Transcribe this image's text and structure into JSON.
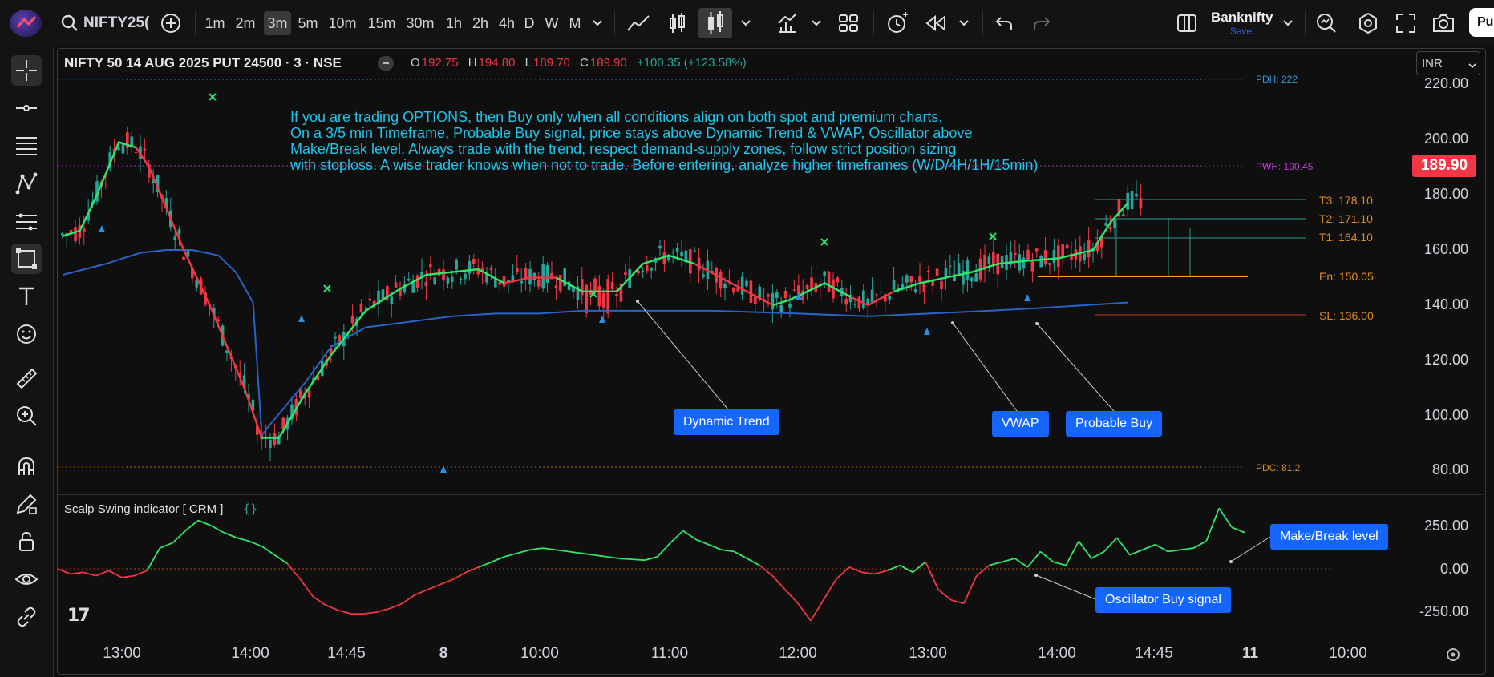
{
  "toolbar": {
    "symbol_search": "NIFTY25(",
    "intervals": [
      "1m",
      "2m",
      "3m",
      "5m",
      "10m",
      "15m",
      "30m",
      "1h",
      "2h",
      "4h",
      "D",
      "W",
      "M"
    ],
    "active_interval": "3m",
    "watchlist_name": "Banknifty",
    "watchlist_save": "Save",
    "publish_label": "Pu"
  },
  "legend": {
    "symbol": "NIFTY 50 14 AUG 2025 PUT 24500 · 3 · NSE",
    "o_label": "O",
    "o": "192.75",
    "h_label": "H",
    "h": "194.80",
    "l_label": "L",
    "l": "189.70",
    "c_label": "C",
    "c": "189.90",
    "change": "+100.35 (+123.58%)"
  },
  "currency": "INR",
  "note": "If you are trading OPTIONS, then Buy only when all conditions align on both spot and premium charts,\nOn a 3/5 min Timeframe, Probable Buy signal, price stays above Dynamic Trend & VWAP, Oscillator above\nMake/Break level. Always trade with the trend, respect demand-supply zones, follow strict position sizing\nwith stoploss. A wise trader knows when not to trade. Before entering, analyze higher timeframes (W/D/4H/1H/15min)",
  "callouts": {
    "dynamic_trend": "Dynamic Trend",
    "vwap": "VWAP",
    "probable_buy": "Probable Buy",
    "make_break": "Make/Break level",
    "osc_buy": "Oscillator Buy signal"
  },
  "levels": {
    "pdh": "PDH: 222",
    "pwh": "PWH: 190.45",
    "t3": "T3: 178.10",
    "t2": "T2: 171.10",
    "t1": "T1: 164.10",
    "en": "En: 150.05",
    "sl": "SL: 136.00",
    "pdc": "PDC: 81.2"
  },
  "last_price": "189.90",
  "indicator": {
    "label": "Scalp Swing indicator [ CRM ]"
  },
  "colors": {
    "up": "#26a69a",
    "down": "#ef5350",
    "trend_up": "#2ee86a",
    "trend_down": "#f23645",
    "vwap": "#2962c8",
    "note": "#22c4e8",
    "accent": "#1565ff"
  },
  "chart_data": [
    {
      "type": "candlestick",
      "title": "NIFTY 50 14 AUG 2025 PUT 24500 · 3 · NSE",
      "y_ticks": [
        "220.00",
        "200.00",
        "180.00",
        "160.00",
        "140.00",
        "120.00",
        "100.00",
        "80.00"
      ],
      "x_ticks": [
        "13:00",
        "14:00",
        "14:45",
        "8",
        "10:00",
        "11:00",
        "12:00",
        "13:00",
        "14:00",
        "14:45",
        "11",
        "10:00"
      ],
      "ylim": [
        75,
        225
      ],
      "series": [
        {
          "name": "Dynamic Trend",
          "points": [
            [
              0,
              165
            ],
            [
              4,
              167
            ],
            [
              8,
              180
            ],
            [
              13,
              199
            ],
            [
              17,
              197
            ],
            [
              20,
              190
            ],
            [
              28,
              160
            ],
            [
              34,
              140
            ],
            [
              42,
              110
            ],
            [
              46,
              92
            ],
            [
              50,
              92
            ],
            [
              56,
              108
            ],
            [
              62,
              122
            ],
            [
              70,
              138
            ],
            [
              78,
              146
            ],
            [
              84,
              151
            ],
            [
              90,
              152
            ],
            [
              96,
              153
            ],
            [
              102,
              148
            ],
            [
              108,
              150
            ],
            [
              114,
              150
            ],
            [
              120,
              145
            ],
            [
              128,
              145
            ],
            [
              134,
              155
            ],
            [
              140,
              158
            ],
            [
              146,
              155
            ],
            [
              152,
              150
            ],
            [
              158,
              145
            ],
            [
              164,
              140
            ],
            [
              168,
              142
            ],
            [
              176,
              148
            ],
            [
              182,
              143
            ],
            [
              186,
              140
            ],
            [
              192,
              145
            ],
            [
              198,
              148
            ],
            [
              204,
              150
            ],
            [
              210,
              152
            ],
            [
              216,
              155
            ],
            [
              222,
              156
            ],
            [
              230,
              157
            ],
            [
              238,
              160
            ],
            [
              242,
              170
            ],
            [
              246,
              177
            ]
          ]
        },
        {
          "name": "VWAP",
          "points": [
            [
              0,
              151
            ],
            [
              10,
              155
            ],
            [
              18,
              159
            ],
            [
              24,
              160
            ],
            [
              30,
              160
            ],
            [
              36,
              158
            ],
            [
              40,
              152
            ],
            [
              44,
              141
            ],
            [
              46,
              93
            ],
            [
              48,
              97
            ],
            [
              56,
              112
            ],
            [
              62,
              125
            ],
            [
              70,
              132
            ],
            [
              80,
              134
            ],
            [
              90,
              136
            ],
            [
              100,
              137
            ],
            [
              110,
              137
            ],
            [
              120,
              138
            ],
            [
              134,
              138
            ],
            [
              150,
              138
            ],
            [
              170,
              137
            ],
            [
              186,
              136
            ],
            [
              200,
              137
            ],
            [
              214,
              138
            ],
            [
              226,
              139
            ],
            [
              236,
              140
            ],
            [
              246,
              141
            ]
          ]
        }
      ]
    },
    {
      "type": "line",
      "title": "Scalp Swing indicator [ CRM ]",
      "y_ticks": [
        "250.00",
        "0.00",
        "-250.00"
      ],
      "ylim": [
        -320,
        340
      ],
      "values": [
        0,
        -30,
        -20,
        -40,
        -10,
        -50,
        -40,
        -10,
        120,
        150,
        220,
        280,
        250,
        210,
        180,
        160,
        130,
        80,
        30,
        -60,
        -160,
        -210,
        -240,
        -260,
        -260,
        -250,
        -230,
        -200,
        -150,
        -120,
        -90,
        -60,
        -20,
        10,
        40,
        70,
        90,
        110,
        120,
        110,
        100,
        90,
        80,
        70,
        60,
        55,
        50,
        70,
        150,
        220,
        170,
        140,
        110,
        100,
        60,
        20,
        -40,
        -120,
        -200,
        -300,
        -180,
        -60,
        10,
        -20,
        -30,
        -10,
        20,
        -20,
        40,
        -120,
        -180,
        -200,
        -40,
        20,
        40,
        60,
        10,
        100,
        40,
        20,
        160,
        60,
        100,
        180,
        80,
        110,
        140,
        100,
        110,
        120,
        160,
        350,
        240,
        210
      ]
    }
  ]
}
